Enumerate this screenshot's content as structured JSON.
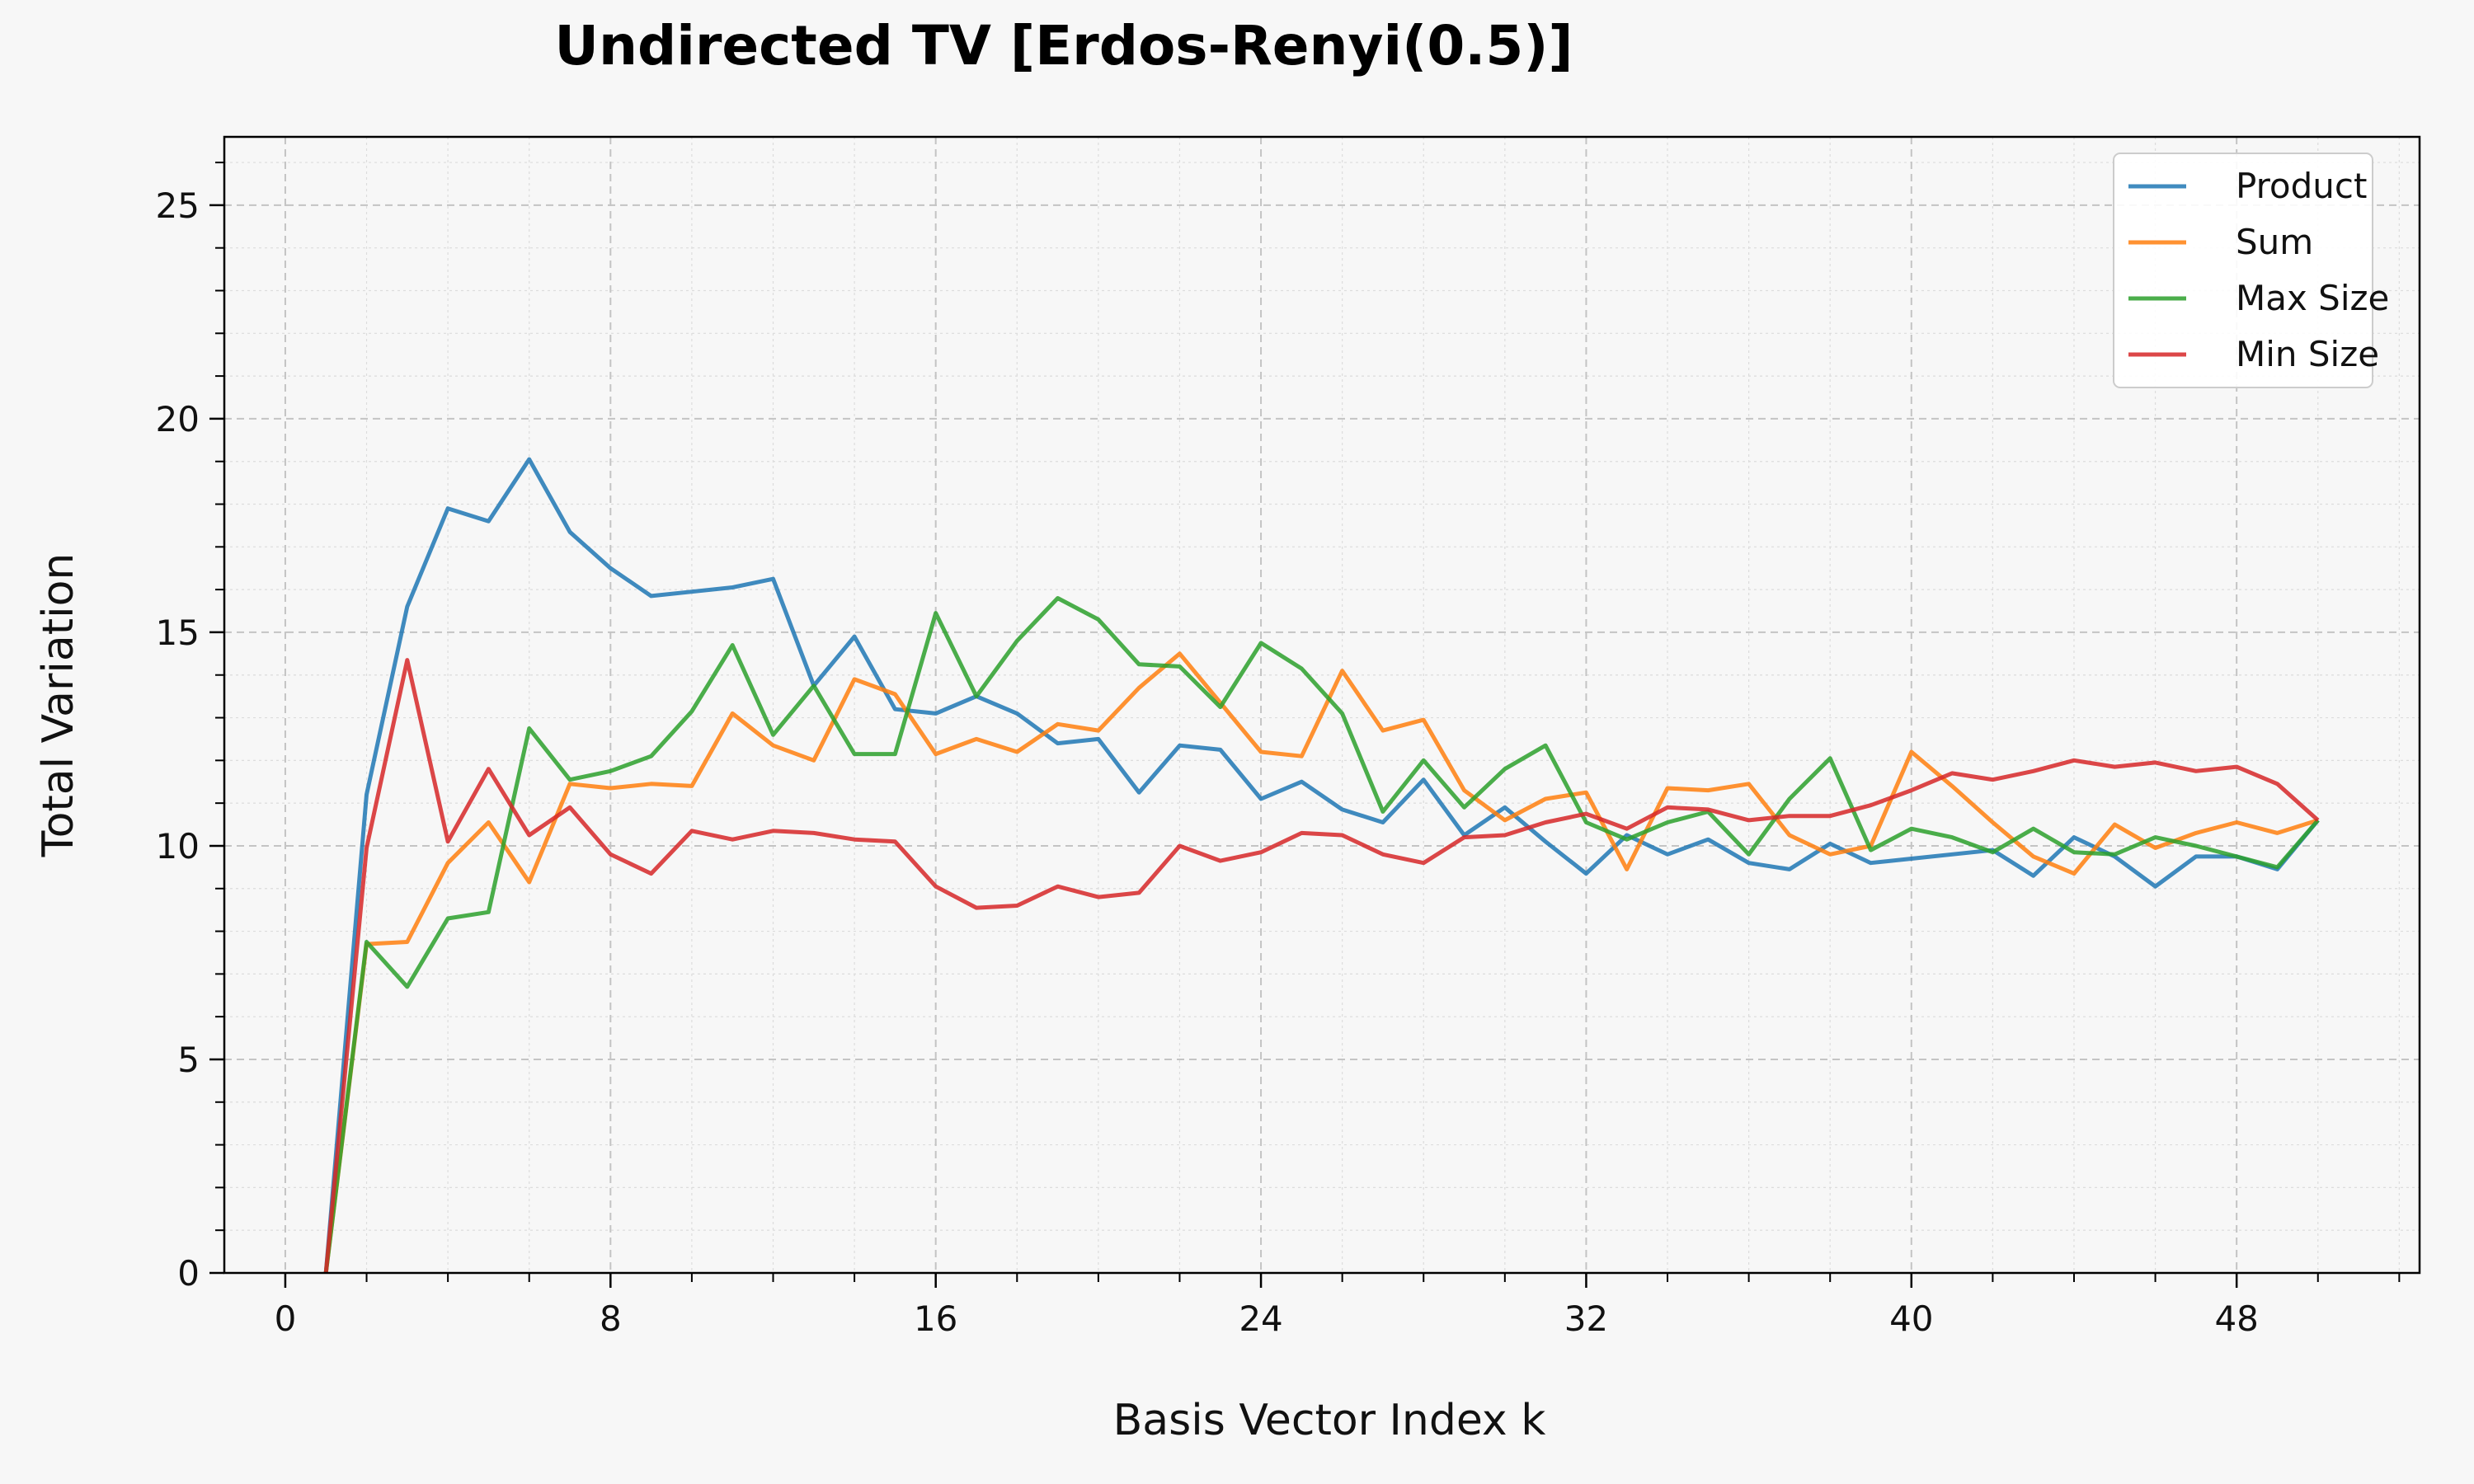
{
  "chart_data": {
    "type": "line",
    "title": "Undirected TV [Erdos-Renyi(0.5)]",
    "xlabel": "Basis Vector Index k",
    "ylabel": "Total Variation",
    "xlim": [
      -1.5,
      52.5
    ],
    "ylim": [
      0,
      26.6
    ],
    "xticks": [
      "0",
      "8",
      "16",
      "24",
      "32",
      "40",
      "48"
    ],
    "yticks": [
      "0",
      "5",
      "10",
      "15",
      "20",
      "25"
    ],
    "grid": true,
    "legend_position": "top-right",
    "x": [
      1,
      2,
      3,
      4,
      5,
      6,
      7,
      8,
      9,
      10,
      11,
      12,
      13,
      14,
      15,
      16,
      17,
      18,
      19,
      20,
      21,
      22,
      23,
      24,
      25,
      26,
      27,
      28,
      29,
      30,
      31,
      32,
      33,
      34,
      35,
      36,
      37,
      38,
      39,
      40,
      41,
      42,
      43,
      44,
      45,
      46,
      47,
      48,
      49,
      50
    ],
    "series": [
      {
        "name": "Product",
        "color": "#1f77b4",
        "values": [
          0,
          11.2,
          15.6,
          17.9,
          17.6,
          19.05,
          17.35,
          16.5,
          15.85,
          15.95,
          16.05,
          16.25,
          13.75,
          14.9,
          13.2,
          13.1,
          13.5,
          13.1,
          12.4,
          12.5,
          11.25,
          12.35,
          12.25,
          11.1,
          11.5,
          10.85,
          10.55,
          11.55,
          10.25,
          10.9,
          10.1,
          9.35,
          10.25,
          9.8,
          10.15,
          9.6,
          9.45,
          10.05,
          9.6,
          9.7,
          9.8,
          9.9,
          9.3,
          10.2,
          9.75,
          9.05,
          9.75,
          9.75,
          9.45,
          10.6
        ]
      },
      {
        "name": "Sum",
        "color": "#ff7f0e",
        "values": [
          0,
          7.7,
          7.75,
          9.6,
          10.55,
          9.15,
          11.45,
          11.35,
          11.45,
          11.4,
          13.1,
          12.35,
          12.0,
          13.9,
          13.55,
          12.15,
          12.5,
          12.2,
          12.85,
          12.7,
          13.7,
          14.5,
          13.35,
          12.2,
          12.1,
          14.1,
          12.7,
          12.95,
          11.3,
          10.6,
          11.1,
          11.25,
          9.45,
          11.35,
          11.3,
          11.45,
          10.25,
          9.8,
          10.0,
          12.2,
          11.4,
          10.55,
          9.75,
          9.35,
          10.5,
          9.95,
          10.3,
          10.55,
          10.3,
          10.6
        ]
      },
      {
        "name": "Max Size",
        "color": "#2ca02c",
        "values": [
          0,
          7.75,
          6.7,
          8.3,
          8.45,
          12.75,
          11.55,
          11.75,
          12.1,
          13.15,
          14.7,
          12.6,
          13.75,
          12.15,
          12.15,
          15.45,
          13.5,
          14.8,
          15.8,
          15.3,
          14.25,
          14.2,
          13.25,
          14.75,
          14.15,
          13.1,
          10.8,
          12.0,
          10.9,
          11.8,
          12.35,
          10.55,
          10.15,
          10.55,
          10.8,
          9.8,
          11.1,
          12.05,
          9.9,
          10.4,
          10.2,
          9.85,
          10.4,
          9.85,
          9.8,
          10.2,
          10.0,
          9.75,
          9.5,
          10.6
        ]
      },
      {
        "name": "Min Size",
        "color": "#d62728",
        "values": [
          0,
          9.95,
          14.35,
          10.1,
          11.8,
          10.25,
          10.9,
          9.8,
          9.35,
          10.35,
          10.15,
          10.35,
          10.3,
          10.15,
          10.1,
          9.05,
          8.55,
          8.6,
          9.05,
          8.8,
          8.9,
          10.0,
          9.65,
          9.85,
          10.3,
          10.25,
          9.8,
          9.6,
          10.2,
          10.25,
          10.55,
          10.75,
          10.4,
          10.9,
          10.85,
          10.6,
          10.7,
          10.7,
          10.95,
          11.3,
          11.7,
          11.55,
          11.75,
          12.0,
          11.85,
          11.95,
          11.75,
          11.85,
          11.45,
          10.6
        ]
      }
    ]
  }
}
